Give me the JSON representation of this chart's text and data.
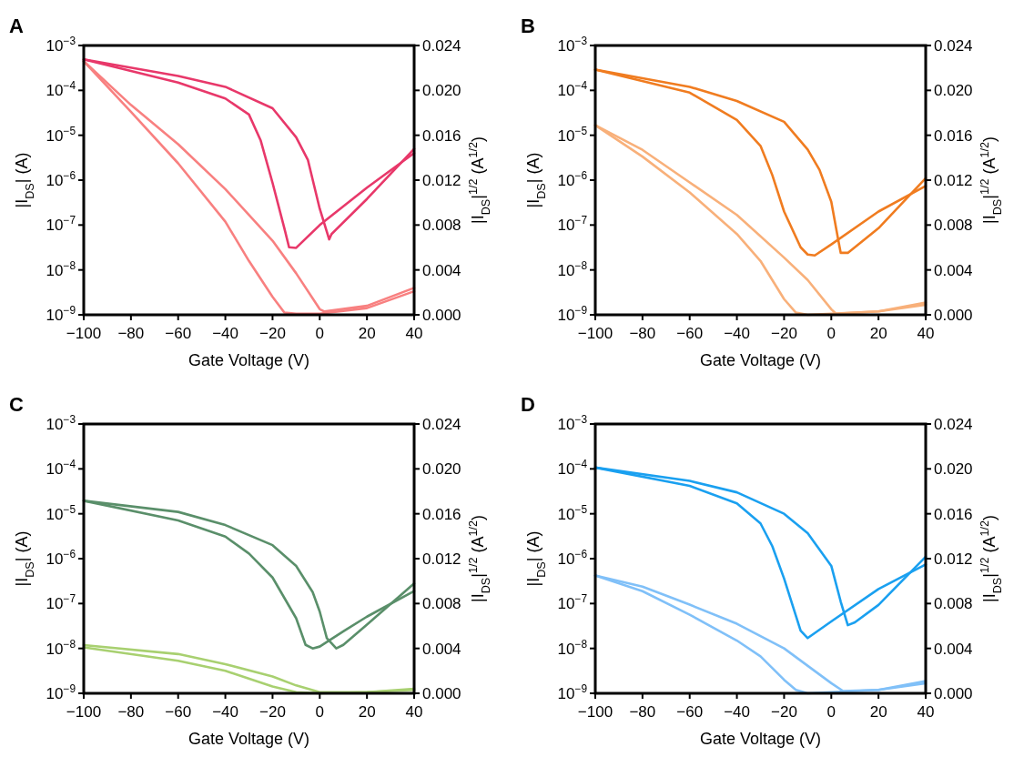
{
  "chart_data": [
    {
      "type": "line",
      "title": "A",
      "xlabel": "Gate Voltage (V)",
      "ylabel": "|I$_{DS}$| (A)",
      "y2label": "|I$_{DS}$|$^{1/2}$ (A$^{1/2}$)",
      "log": "y",
      "xlim": [
        -100,
        40
      ],
      "xticks": [
        {
          "value": -100,
          "label": "−100"
        },
        {
          "value": -80,
          "label": "−80"
        },
        {
          "value": -60,
          "label": "−60"
        },
        {
          "value": -40,
          "label": "−40"
        },
        {
          "value": -20,
          "label": "−20"
        },
        0,
        20,
        40
      ],
      "ylim": [
        1e-09,
        0.001
      ],
      "yticks": [
        {
          "value": 1e-09,
          "label": "10$^{−9}$"
        },
        {
          "value": 1e-08,
          "label": "10$^{−8}$"
        },
        {
          "value": 1e-07,
          "label": "10$^{−7}$"
        },
        {
          "value": 1e-06,
          "label": "10$^{−6}$"
        },
        {
          "value": 1e-05,
          "label": "10$^{−5}$"
        },
        {
          "value": 0.0001,
          "label": "10$^{−4}$"
        },
        {
          "value": 0.001,
          "label": "10$^{−3}$"
        }
      ],
      "y2lim": [
        0,
        0.024
      ],
      "y2ticks": [
        {
          "value": 0,
          "label": "0.000"
        },
        {
          "value": 0.004,
          "label": "0.004"
        },
        {
          "value": 0.008,
          "label": "0.008"
        },
        {
          "value": 0.012,
          "label": "0.012"
        },
        {
          "value": 0.016,
          "label": "0.016"
        },
        {
          "value": 0.02,
          "label": "0.020"
        },
        {
          "value": 0.024,
          "label": "0.024"
        }
      ],
      "series": [
        {
          "color": "#e8386a",
          "x": [
            -100,
            -60,
            -40,
            -20,
            -10,
            -5,
            0,
            4,
            5,
            20,
            40
          ],
          "values": [
            0.00049,
            0.00021,
            0.00012,
            4e-05,
            9e-06,
            2.8e-06,
            2.3e-07,
            4.8e-08,
            6.3e-08,
            3.8e-07,
            5e-06
          ]
        },
        {
          "color": "#e8386a",
          "x": [
            -100,
            -60,
            -40,
            -30,
            -25,
            -20,
            -15,
            -13,
            -10,
            0,
            20,
            40
          ],
          "values": [
            0.00049,
            0.00015,
            6.6e-05,
            2.9e-05,
            7.6e-06,
            8.7e-07,
            8.5e-08,
            3.2e-08,
            3.1e-08,
            1e-07,
            6.8e-07,
            4e-06
          ]
        },
        {
          "color": "#f88080",
          "axis": "y2",
          "x": [
            -100,
            -80,
            -60,
            -40,
            -30,
            -20,
            -15,
            -10,
            0,
            20,
            40
          ],
          "values": [
            0.0226,
            0.0181,
            0.0135,
            0.0083,
            0.0048,
            0.0016,
            0.0002,
            0.0001,
            0.0001,
            0.0006,
            0.0021
          ]
        },
        {
          "color": "#f88080",
          "axis": "y2",
          "x": [
            -100,
            -80,
            -60,
            -40,
            -20,
            -10,
            0,
            2,
            20,
            40
          ],
          "values": [
            0.0226,
            0.0187,
            0.0152,
            0.0112,
            0.0066,
            0.0037,
            0.0005,
            0.0003,
            0.0008,
            0.0024
          ]
        }
      ]
    },
    {
      "type": "line",
      "title": "B",
      "xlabel": "Gate Voltage (V)",
      "ylabel": "|I$_{DS}$| (A)",
      "y2label": "|I$_{DS}$|$^{1/2}$ (A$^{1/2}$)",
      "log": "y",
      "xlim": [
        -100,
        40
      ],
      "xticks": [
        {
          "value": -100,
          "label": "−100"
        },
        {
          "value": -80,
          "label": "−80"
        },
        {
          "value": -60,
          "label": "−60"
        },
        {
          "value": -40,
          "label": "−40"
        },
        {
          "value": -20,
          "label": "−20"
        },
        0,
        20,
        40
      ],
      "ylim": [
        1e-09,
        0.001
      ],
      "yticks": [
        {
          "value": 1e-09,
          "label": "10$^{−9}$"
        },
        {
          "value": 1e-08,
          "label": "10$^{−8}$"
        },
        {
          "value": 1e-07,
          "label": "10$^{−7}$"
        },
        {
          "value": 1e-06,
          "label": "10$^{−6}$"
        },
        {
          "value": 1e-05,
          "label": "10$^{−5}$"
        },
        {
          "value": 0.0001,
          "label": "10$^{−4}$"
        },
        {
          "value": 0.001,
          "label": "10$^{−3}$"
        }
      ],
      "y2lim": [
        0,
        0.024
      ],
      "y2ticks": [
        {
          "value": 0,
          "label": "0.000"
        },
        {
          "value": 0.004,
          "label": "0.004"
        },
        {
          "value": 0.008,
          "label": "0.008"
        },
        {
          "value": 0.012,
          "label": "0.012"
        },
        {
          "value": 0.016,
          "label": "0.016"
        },
        {
          "value": 0.02,
          "label": "0.020"
        },
        {
          "value": 0.024,
          "label": "0.024"
        }
      ],
      "series": [
        {
          "color": "#f07c20",
          "x": [
            -100,
            -60,
            -40,
            -20,
            -10,
            -5,
            0,
            3,
            4,
            7,
            20,
            40
          ],
          "values": [
            0.00029,
            0.00012,
            5.8e-05,
            2e-05,
            4.8e-06,
            1.7e-06,
            3.3e-07,
            4.5e-08,
            2.4e-08,
            2.4e-08,
            8.5e-08,
            1.1e-06
          ]
        },
        {
          "color": "#f07c20",
          "x": [
            -100,
            -60,
            -40,
            -30,
            -25,
            -20,
            -13,
            -10,
            -7,
            0,
            20,
            40
          ],
          "values": [
            0.00029,
            8.9e-05,
            2.2e-05,
            5.8e-06,
            1.3e-06,
            2e-07,
            3.2e-08,
            2.2e-08,
            2.1e-08,
            3.7e-08,
            2e-07,
            7.4e-07
          ]
        },
        {
          "color": "#f8b07a",
          "axis": "y2",
          "x": [
            -100,
            -80,
            -60,
            -40,
            -30,
            -20,
            -15,
            -10,
            0,
            20,
            40
          ],
          "values": [
            0.0169,
            0.0141,
            0.0109,
            0.0072,
            0.0048,
            0.0014,
            0.0002,
            0.0,
            0.0001,
            0.0003,
            0.0009
          ]
        },
        {
          "color": "#f8b07a",
          "axis": "y2",
          "x": [
            -100,
            -80,
            -60,
            -40,
            -20,
            -10,
            0,
            2,
            20,
            40
          ],
          "values": [
            0.0169,
            0.0147,
            0.0118,
            0.0089,
            0.0051,
            0.0031,
            0.0005,
            0.0001,
            0.0003,
            0.0011
          ]
        }
      ]
    },
    {
      "type": "line",
      "title": "C",
      "xlabel": "Gate Voltage (V)",
      "ylabel": "|I$_{DS}$| (A)",
      "y2label": "|I$_{DS}$|$^{1/2}$ (A$^{1/2}$)",
      "log": "y",
      "xlim": [
        -100,
        40
      ],
      "xticks": [
        {
          "value": -100,
          "label": "−100"
        },
        {
          "value": -80,
          "label": "−80"
        },
        {
          "value": -60,
          "label": "−60"
        },
        {
          "value": -40,
          "label": "−40"
        },
        {
          "value": -20,
          "label": "−20"
        },
        0,
        20,
        40
      ],
      "ylim": [
        1e-09,
        0.001
      ],
      "yticks": [
        {
          "value": 1e-09,
          "label": "10$^{−9}$"
        },
        {
          "value": 1e-08,
          "label": "10$^{−8}$"
        },
        {
          "value": 1e-07,
          "label": "10$^{−7}$"
        },
        {
          "value": 1e-06,
          "label": "10$^{−6}$"
        },
        {
          "value": 1e-05,
          "label": "10$^{−5}$"
        },
        {
          "value": 0.0001,
          "label": "10$^{−4}$"
        },
        {
          "value": 0.001,
          "label": "10$^{−3}$"
        }
      ],
      "y2lim": [
        0,
        0.024
      ],
      "y2ticks": [
        {
          "value": 0,
          "label": "0.000"
        },
        {
          "value": 0.004,
          "label": "0.004"
        },
        {
          "value": 0.008,
          "label": "0.008"
        },
        {
          "value": 0.012,
          "label": "0.012"
        },
        {
          "value": 0.016,
          "label": "0.016"
        },
        {
          "value": 0.02,
          "label": "0.020"
        },
        {
          "value": 0.024,
          "label": "0.024"
        }
      ],
      "series": [
        {
          "color": "#5a8f6a",
          "x": [
            -100,
            -60,
            -40,
            -20,
            -10,
            -3,
            0,
            3,
            7,
            10,
            20,
            40
          ],
          "values": [
            1.95e-05,
            1.1e-05,
            5.6e-06,
            2e-06,
            6.9e-07,
            1.8e-07,
            6.6e-08,
            1.7e-08,
            1e-08,
            1.2e-08,
            3.4e-08,
            2.8e-07
          ]
        },
        {
          "color": "#5a8f6a",
          "x": [
            -100,
            -60,
            -40,
            -30,
            -20,
            -10,
            -6,
            -3,
            0,
            10,
            20,
            40
          ],
          "values": [
            1.95e-05,
            7.1e-06,
            3.1e-06,
            1.3e-06,
            3.8e-07,
            4.7e-08,
            1.2e-08,
            1e-08,
            1.1e-08,
            2.4e-08,
            5.1e-08,
            1.9e-07
          ]
        },
        {
          "color": "#a8d070",
          "axis": "y2",
          "x": [
            -100,
            -60,
            -40,
            -20,
            -10,
            0,
            20,
            40
          ],
          "values": [
            0.0041,
            0.0029,
            0.002,
            0.0006,
            0.0001,
            0.0,
            0.0001,
            0.0003
          ]
        },
        {
          "color": "#a8d070",
          "axis": "y2",
          "x": [
            -100,
            -60,
            -40,
            -20,
            -10,
            0,
            20,
            40
          ],
          "values": [
            0.0043,
            0.0035,
            0.0026,
            0.0015,
            0.0007,
            0.0001,
            0.0001,
            0.0004
          ]
        }
      ]
    },
    {
      "type": "line",
      "title": "D",
      "xlabel": "Gate Voltage (V)",
      "ylabel": "|I$_{DS}$| (A)",
      "y2label": "|I$_{DS}$|$^{1/2}$ (A$^{1/2}$)",
      "log": "y",
      "xlim": [
        -100,
        40
      ],
      "xticks": [
        {
          "value": -100,
          "label": "−100"
        },
        {
          "value": -80,
          "label": "−80"
        },
        {
          "value": -60,
          "label": "−60"
        },
        {
          "value": -40,
          "label": "−40"
        },
        {
          "value": -20,
          "label": "−20"
        },
        0,
        20,
        40
      ],
      "ylim": [
        1e-09,
        0.001
      ],
      "yticks": [
        {
          "value": 1e-09,
          "label": "10$^{−9}$"
        },
        {
          "value": 1e-08,
          "label": "10$^{−8}$"
        },
        {
          "value": 1e-07,
          "label": "10$^{−7}$"
        },
        {
          "value": 1e-06,
          "label": "10$^{−6}$"
        },
        {
          "value": 1e-05,
          "label": "10$^{−5}$"
        },
        {
          "value": 0.0001,
          "label": "10$^{−4}$"
        },
        {
          "value": 0.001,
          "label": "10$^{−3}$"
        }
      ],
      "y2lim": [
        0,
        0.024
      ],
      "y2ticks": [
        {
          "value": 0,
          "label": "0.000"
        },
        {
          "value": 0.004,
          "label": "0.004"
        },
        {
          "value": 0.008,
          "label": "0.008"
        },
        {
          "value": 0.012,
          "label": "0.012"
        },
        {
          "value": 0.016,
          "label": "0.016"
        },
        {
          "value": 0.02,
          "label": "0.020"
        },
        {
          "value": 0.024,
          "label": "0.024"
        }
      ],
      "series": [
        {
          "color": "#1aa0f0",
          "x": [
            -100,
            -60,
            -40,
            -20,
            -10,
            0,
            4,
            7,
            10,
            20,
            40
          ],
          "values": [
            0.000107,
            5.4e-05,
            3e-05,
            1e-05,
            3.7e-06,
            6.9e-07,
            1.1e-07,
            3.3e-08,
            3.8e-08,
            9.3e-08,
            1.1e-06
          ]
        },
        {
          "color": "#1aa0f0",
          "x": [
            -100,
            -60,
            -40,
            -30,
            -25,
            -20,
            -13,
            -10,
            0,
            20,
            40
          ],
          "values": [
            0.000107,
            4.2e-05,
            1.7e-05,
            6.1e-06,
            1.9e-06,
            3.6e-07,
            2.5e-08,
            1.7e-08,
            4e-08,
            2.1e-07,
            7.4e-07
          ]
        },
        {
          "color": "#80c0f8",
          "axis": "y2",
          "x": [
            -100,
            -80,
            -60,
            -40,
            -30,
            -20,
            -15,
            -10,
            0,
            20,
            40
          ],
          "values": [
            0.0105,
            0.0091,
            0.007,
            0.0047,
            0.0033,
            0.0012,
            0.0003,
            0.0,
            0.0001,
            0.0003,
            0.0009
          ]
        },
        {
          "color": "#80c0f8",
          "axis": "y2",
          "x": [
            -100,
            -80,
            -60,
            -40,
            -20,
            0,
            5,
            20,
            40
          ],
          "values": [
            0.0105,
            0.0095,
            0.0079,
            0.0062,
            0.004,
            0.0009,
            0.0002,
            0.0003,
            0.0011
          ]
        }
      ]
    }
  ]
}
